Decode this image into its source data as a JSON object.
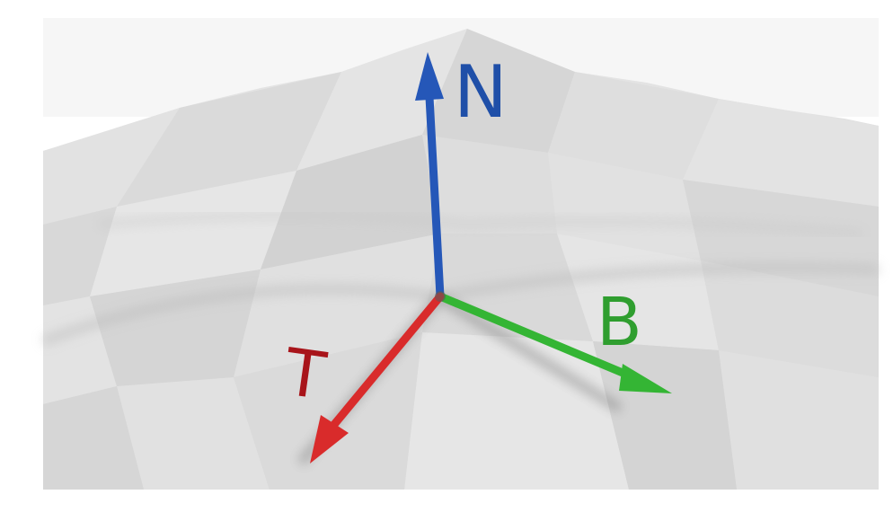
{
  "figure": {
    "axes": [
      {
        "id": "normal",
        "label": "N",
        "color": "#1f4fa8"
      },
      {
        "id": "bitangent",
        "label": "B",
        "color": "#2f9e2f"
      },
      {
        "id": "tangent",
        "label": "T",
        "color": "#a8141a"
      }
    ],
    "arrow_colors": {
      "normal": "#2557b8",
      "bitangent": "#34b534",
      "tangent": "#d92b2b"
    },
    "surface_color": "#d4d4d4"
  }
}
